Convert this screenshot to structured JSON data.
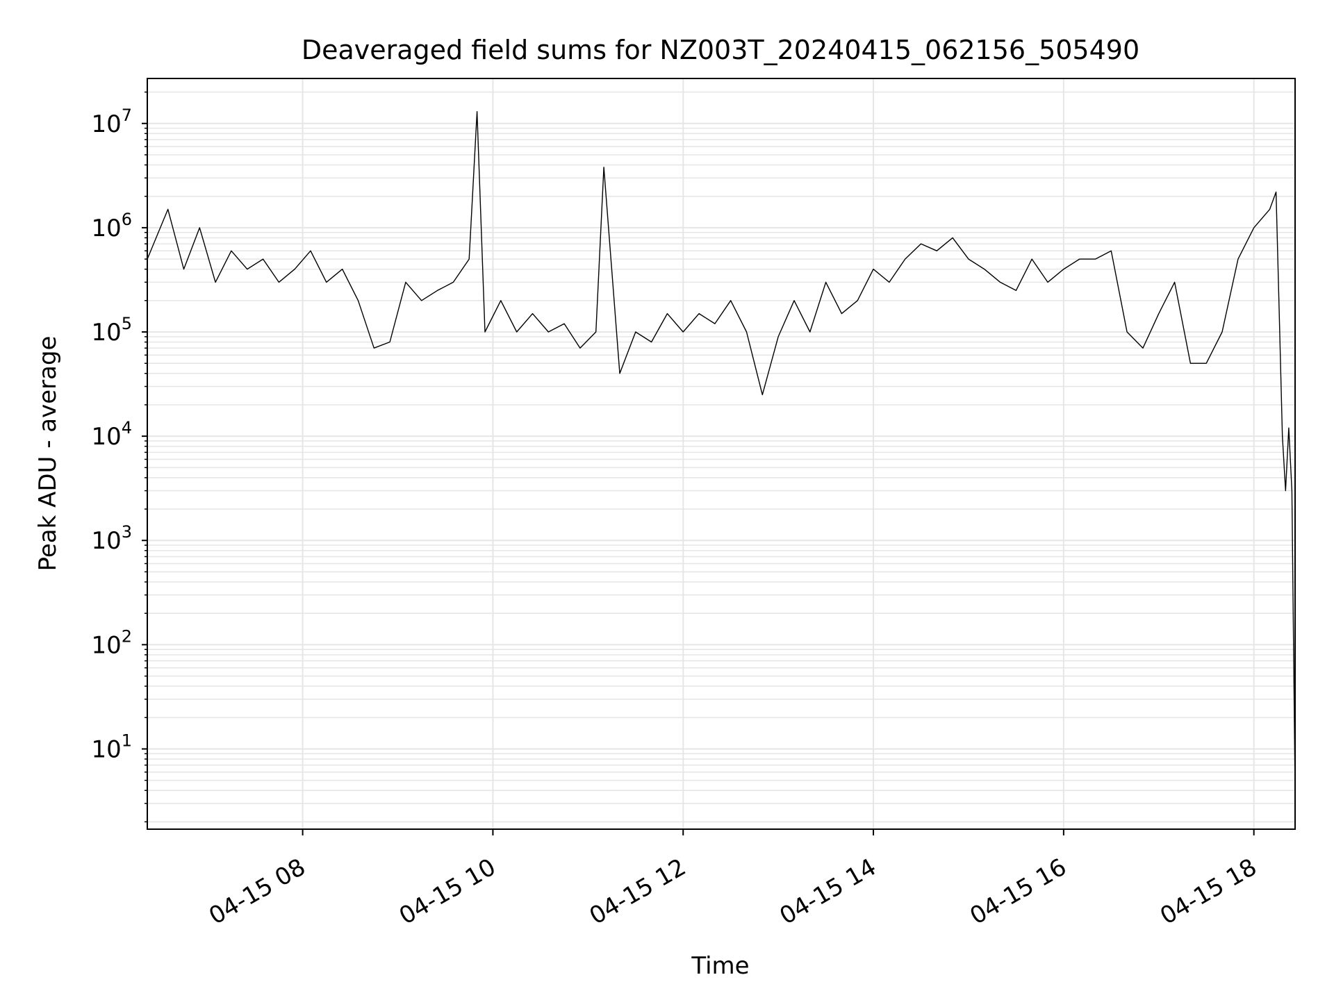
{
  "chart_data": {
    "type": "line",
    "title": "Deaveraged field sums for NZ003T_20240415_062156_505490",
    "xlabel": "Time",
    "ylabel": "Peak ADU - average",
    "yscale": "log",
    "grid": "major and minor",
    "line_color": "#000000",
    "grid_color": "#e6e6e6",
    "xlim": [
      "2024-04-15 06:22",
      "2024-04-15 18:26"
    ],
    "ylim": [
      1.7,
      27000000
    ],
    "x_ticks": [
      {
        "value": "2024-04-15 08:00",
        "label": "04-15 08"
      },
      {
        "value": "2024-04-15 10:00",
        "label": "04-15 10"
      },
      {
        "value": "2024-04-15 12:00",
        "label": "04-15 12"
      },
      {
        "value": "2024-04-15 14:00",
        "label": "04-15 14"
      },
      {
        "value": "2024-04-15 16:00",
        "label": "04-15 16"
      },
      {
        "value": "2024-04-15 18:00",
        "label": "04-15 18"
      }
    ],
    "y_ticks": [
      {
        "value": 10,
        "base": "10",
        "exp": "1"
      },
      {
        "value": 100,
        "base": "10",
        "exp": "2"
      },
      {
        "value": 1000,
        "base": "10",
        "exp": "3"
      },
      {
        "value": 10000,
        "base": "10",
        "exp": "4"
      },
      {
        "value": 100000,
        "base": "10",
        "exp": "5"
      },
      {
        "value": 1000000,
        "base": "10",
        "exp": "6"
      },
      {
        "value": 10000000,
        "base": "10",
        "exp": "7"
      }
    ],
    "series": [
      {
        "x": [
          "2024-04-15 06:22",
          "2024-04-15 06:35",
          "2024-04-15 06:45",
          "2024-04-15 06:55",
          "2024-04-15 07:05",
          "2024-04-15 07:15",
          "2024-04-15 07:25",
          "2024-04-15 07:35",
          "2024-04-15 07:45",
          "2024-04-15 07:55",
          "2024-04-15 08:05",
          "2024-04-15 08:15",
          "2024-04-15 08:25",
          "2024-04-15 08:35",
          "2024-04-15 08:45",
          "2024-04-15 08:55",
          "2024-04-15 09:05",
          "2024-04-15 09:15",
          "2024-04-15 09:25",
          "2024-04-15 09:35",
          "2024-04-15 09:45",
          "2024-04-15 09:50",
          "2024-04-15 09:55",
          "2024-04-15 10:05",
          "2024-04-15 10:15",
          "2024-04-15 10:25",
          "2024-04-15 10:35",
          "2024-04-15 10:45",
          "2024-04-15 10:55",
          "2024-04-15 11:05",
          "2024-04-15 11:10",
          "2024-04-15 11:20",
          "2024-04-15 11:30",
          "2024-04-15 11:40",
          "2024-04-15 11:50",
          "2024-04-15 12:00",
          "2024-04-15 12:10",
          "2024-04-15 12:20",
          "2024-04-15 12:30",
          "2024-04-15 12:40",
          "2024-04-15 12:50",
          "2024-04-15 13:00",
          "2024-04-15 13:10",
          "2024-04-15 13:20",
          "2024-04-15 13:30",
          "2024-04-15 13:40",
          "2024-04-15 13:50",
          "2024-04-15 14:00",
          "2024-04-15 14:10",
          "2024-04-15 14:20",
          "2024-04-15 14:30",
          "2024-04-15 14:40",
          "2024-04-15 14:50",
          "2024-04-15 15:00",
          "2024-04-15 15:10",
          "2024-04-15 15:20",
          "2024-04-15 15:30",
          "2024-04-15 15:40",
          "2024-04-15 15:50",
          "2024-04-15 16:00",
          "2024-04-15 16:10",
          "2024-04-15 16:20",
          "2024-04-15 16:30",
          "2024-04-15 16:40",
          "2024-04-15 16:50",
          "2024-04-15 17:00",
          "2024-04-15 17:10",
          "2024-04-15 17:20",
          "2024-04-15 17:30",
          "2024-04-15 17:40",
          "2024-04-15 17:50",
          "2024-04-15 18:00",
          "2024-04-15 18:10",
          "2024-04-15 18:14",
          "2024-04-15 18:16",
          "2024-04-15 18:18",
          "2024-04-15 18:20",
          "2024-04-15 18:22",
          "2024-04-15 18:24",
          "2024-04-15 18:26"
        ],
        "y": [
          500000,
          1500000,
          400000,
          1000000,
          300000,
          600000,
          400000,
          500000,
          300000,
          400000,
          600000,
          300000,
          400000,
          200000,
          70000,
          80000,
          300000,
          200000,
          250000,
          300000,
          500000,
          13000000,
          100000,
          200000,
          100000,
          150000,
          100000,
          120000,
          70000,
          100000,
          3800000,
          40000,
          100000,
          80000,
          150000,
          100000,
          150000,
          120000,
          200000,
          100000,
          25000,
          90000,
          200000,
          100000,
          300000,
          150000,
          200000,
          400000,
          300000,
          500000,
          700000,
          600000,
          800000,
          500000,
          400000,
          300000,
          250000,
          500000,
          300000,
          400000,
          500000,
          500000,
          600000,
          100000,
          70000,
          150000,
          300000,
          50000,
          50000,
          100000,
          500000,
          1000000,
          1500000,
          2200000,
          150000,
          10000,
          3000,
          12000,
          3000,
          4
        ]
      }
    ]
  }
}
